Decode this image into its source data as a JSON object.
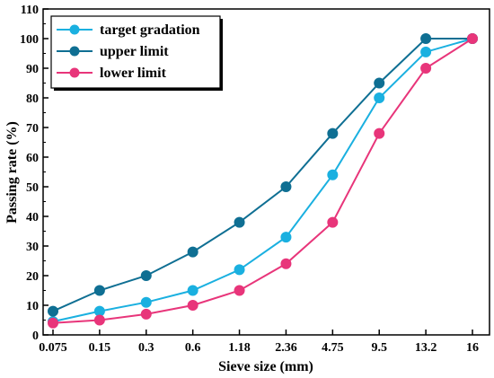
{
  "chart_data": {
    "type": "line",
    "xlabel": "Sieve size (mm)",
    "ylabel": "Passing rate (%)",
    "categories": [
      "0.075",
      "0.15",
      "0.3",
      "0.6",
      "1.18",
      "2.36",
      "4.75",
      "9.5",
      "13.2",
      "16"
    ],
    "ylim": [
      0,
      110
    ],
    "yticks": [
      0,
      10,
      20,
      30,
      40,
      50,
      60,
      70,
      80,
      90,
      100,
      110
    ],
    "grid": false,
    "legend_position": "top-left",
    "series": [
      {
        "name": "target gradation",
        "color": "#1ab0e0",
        "values": [
          4.5,
          8,
          11,
          15,
          22,
          33,
          54,
          80,
          95.5,
          100
        ]
      },
      {
        "name": "upper limit",
        "color": "#0f6f93",
        "values": [
          8,
          15,
          20,
          28,
          38,
          50,
          68,
          85,
          100,
          100
        ]
      },
      {
        "name": "lower limit",
        "color": "#e8357a",
        "values": [
          4,
          5,
          7,
          10,
          15,
          24,
          38,
          68,
          90,
          100
        ]
      }
    ]
  }
}
